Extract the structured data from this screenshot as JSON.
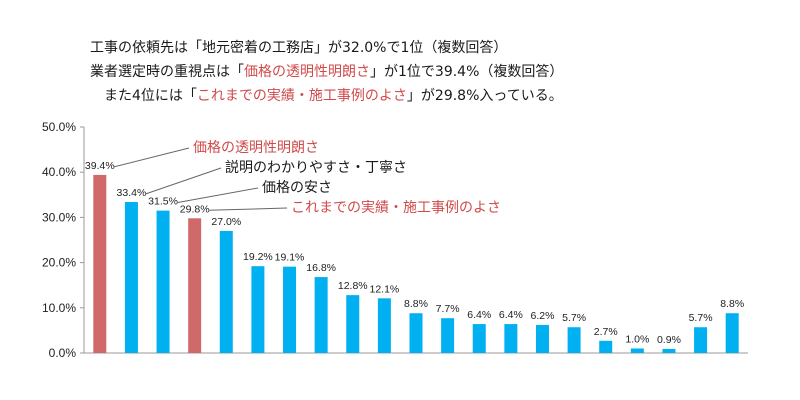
{
  "headline": {
    "line1": "工事の依頼先は「地元密着の工務店」が32.0%で1位（複数回答）",
    "line2_pre": "業者選定時の重視点は「",
    "line2_hl": "価格の透明性明朗さ",
    "line2_post": "」が1位で39.4%（複数回答）",
    "line3_pre": "また4位には「",
    "line3_hl": "これまでの実績・施工事例のよさ",
    "line3_post": "」が29.8%入っている。"
  },
  "colors": {
    "highlight": "#d06a6a",
    "default": "#00b0f0",
    "highlight_text": "#d04a4a",
    "text": "#1a1a1a"
  },
  "chart_data": {
    "type": "bar",
    "ylim": [
      0,
      50
    ],
    "ytick_step": 10,
    "yticks": [
      "0.0%",
      "10.0%",
      "20.0%",
      "30.0%",
      "40.0%",
      "50.0%"
    ],
    "values": [
      39.4,
      33.4,
      31.5,
      29.8,
      27.0,
      19.2,
      19.1,
      16.8,
      12.8,
      12.1,
      8.8,
      7.7,
      6.4,
      6.4,
      6.2,
      5.7,
      2.7,
      1.0,
      0.9,
      5.7,
      8.8
    ],
    "labels": [
      "39.4%",
      "33.4%",
      "31.5%",
      "29.8%",
      "27.0%",
      "19.2%",
      "19.1%",
      "16.8%",
      "12.8%",
      "12.1%",
      "8.8%",
      "7.7%",
      "6.4%",
      "6.4%",
      "6.2%",
      "5.7%",
      "2.7%",
      "1.0%",
      "0.9%",
      "5.7%",
      "8.8%"
    ],
    "highlighted": [
      0,
      3
    ],
    "annotations": [
      {
        "bar": 0,
        "text": "価格の透明性明朗さ",
        "highlight": true
      },
      {
        "bar": 1,
        "text": "説明のわかりやすさ・丁寧さ",
        "highlight": false
      },
      {
        "bar": 2,
        "text": "価格の安さ",
        "highlight": false
      },
      {
        "bar": 3,
        "text": "これまでの実績・施工事例のよさ",
        "highlight": true
      }
    ]
  }
}
